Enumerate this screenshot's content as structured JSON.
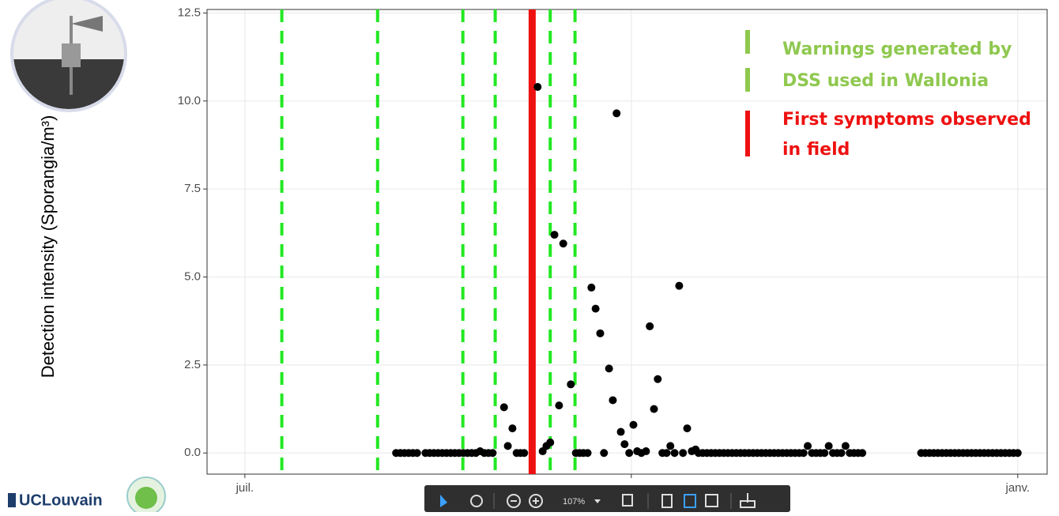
{
  "chart_data": {
    "type": "scatter",
    "y_label": "Detection intensity (Sporangia/m³)",
    "xlim": [
      -9,
      191
    ],
    "ylim": [
      -0.6,
      12.6
    ],
    "xticks": [
      {
        "value": 0,
        "label": "juil."
      },
      {
        "value": 92,
        "label": null
      },
      {
        "value": 184,
        "label": "janv."
      }
    ],
    "yticks": [
      {
        "value": 0,
        "label": "0.0"
      },
      {
        "value": 2.5,
        "label": "2.5"
      },
      {
        "value": 5,
        "label": "5.0"
      },
      {
        "value": 7.5,
        "label": "7.5"
      },
      {
        "value": 10,
        "label": "10.0"
      },
      {
        "value": 12.5,
        "label": "12.5"
      }
    ],
    "grid": true,
    "color": "#000000",
    "x": [
      36,
      37,
      38,
      39,
      40,
      41,
      43,
      44,
      45,
      46,
      47,
      48,
      49,
      50,
      51,
      52,
      53,
      54,
      55,
      56,
      57,
      58,
      59,
      61.7,
      62.6,
      63.7,
      64.7,
      65.6,
      66.5,
      69.7,
      70.9,
      71.8,
      72.7,
      73.7,
      74.8,
      75.8,
      77.6,
      78.8,
      79.7,
      80.6,
      81.6,
      82.5,
      83.5,
      84.6,
      85.5,
      86.7,
      87.6,
      88.5,
      89.5,
      90.4,
      91.5,
      92.5,
      93.4,
      94.4,
      95.5,
      96.4,
      97.4,
      98.3,
      99.4,
      100.4,
      101.3,
      102.3,
      103.4,
      104.3,
      105.3,
      106.4,
      107.3,
      108,
      109,
      110,
      111,
      112,
      113,
      114,
      115,
      116,
      117,
      118,
      119,
      120,
      121,
      122,
      123,
      124,
      125,
      126,
      127,
      128,
      129,
      130,
      131,
      132,
      133,
      134,
      135,
      136,
      137,
      138,
      139,
      140,
      141,
      142,
      143,
      144,
      145,
      146,
      147,
      161,
      162,
      163,
      164,
      165,
      166,
      167,
      168,
      169,
      170,
      171,
      172,
      173,
      174,
      175,
      176,
      177,
      178,
      179,
      180,
      181,
      182,
      183,
      184
    ],
    "values": [
      0,
      0,
      0,
      0,
      0,
      0,
      0,
      0,
      0,
      0,
      0,
      0,
      0,
      0,
      0,
      0,
      0,
      0,
      0,
      0.05,
      0,
      0,
      0,
      1.3,
      0.2,
      0.7,
      0,
      0,
      0,
      10.4,
      0.05,
      0.2,
      0.3,
      6.2,
      1.35,
      5.95,
      1.95,
      0,
      0,
      0,
      0,
      4.7,
      4.1,
      3.4,
      0,
      2.4,
      1.5,
      9.65,
      0.6,
      0.25,
      0,
      0.8,
      0.05,
      0,
      0.05,
      3.6,
      1.25,
      2.1,
      0,
      0,
      0.2,
      0,
      4.75,
      0,
      0.7,
      0.05,
      0.1,
      0,
      0,
      0,
      0,
      0,
      0,
      0,
      0,
      0,
      0,
      0,
      0,
      0,
      0,
      0,
      0,
      0,
      0,
      0,
      0,
      0,
      0,
      0,
      0,
      0,
      0,
      0.2,
      0,
      0,
      0,
      0,
      0.2,
      0,
      0,
      0,
      0.2,
      0,
      0,
      0,
      0,
      0,
      0,
      0,
      0,
      0,
      0,
      0,
      0,
      0,
      0,
      0,
      0,
      0,
      0,
      0,
      0,
      0,
      0,
      0,
      0,
      0,
      0,
      0,
      0
    ],
    "warning_lines": {
      "name": [
        "Warnings generated by",
        "DSS used in Wallonia"
      ],
      "color": "#22e822",
      "x": [
        8.8,
        31.6,
        51.9,
        59.6,
        72.7,
        78.6
      ]
    },
    "symptom_line": {
      "name": [
        "First symptoms observed",
        "in field"
      ],
      "color": "#ee1111",
      "x": 68.4
    },
    "legend_text_color": "#8fc84f"
  },
  "logo": {
    "text": "UCLouvain"
  },
  "toolbar": {
    "zoom": "107%"
  }
}
